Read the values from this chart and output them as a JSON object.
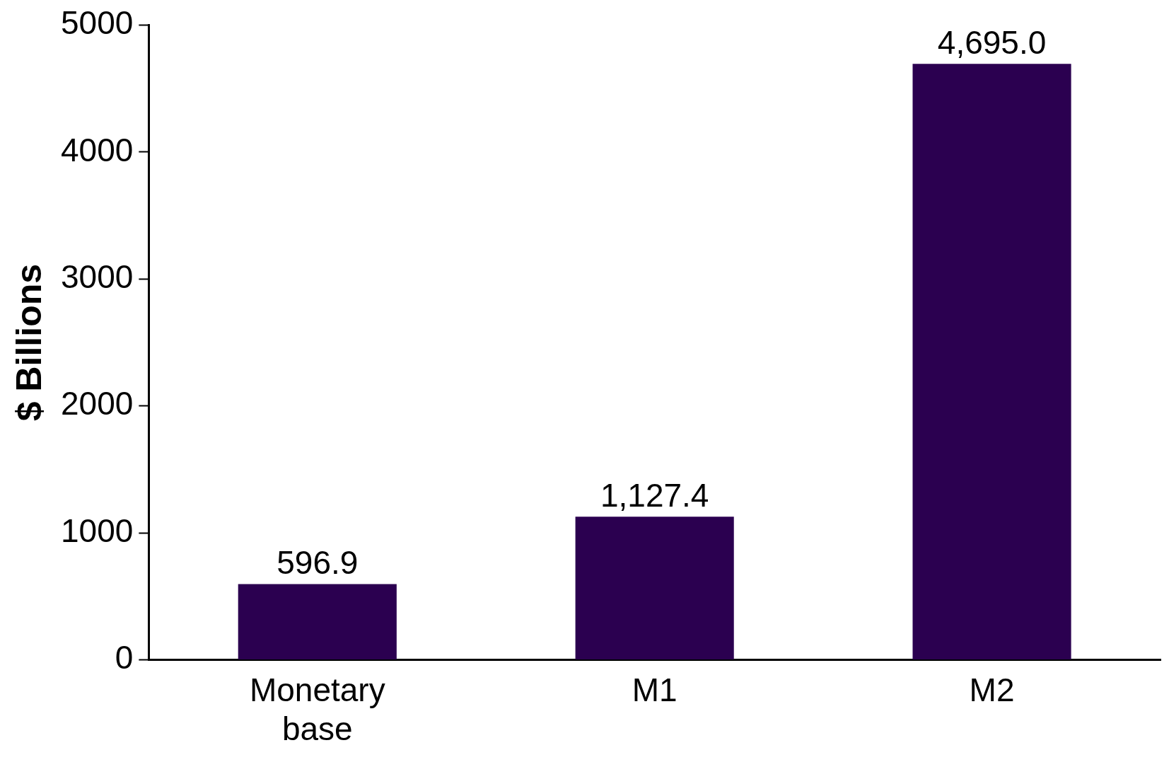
{
  "chart_data": {
    "type": "bar",
    "ylabel": "$ Billions",
    "categories": [
      "Monetary base",
      "M1",
      "M2"
    ],
    "values": [
      596.9,
      1127.4,
      4695.0
    ],
    "value_labels": [
      "596.9",
      "1,127.4",
      "4,695.0"
    ],
    "color": "#2b0050",
    "ylim": [
      0,
      5000
    ],
    "yticks": [
      0,
      1000,
      2000,
      3000,
      4000,
      5000
    ],
    "grid": false,
    "legend": false
  }
}
